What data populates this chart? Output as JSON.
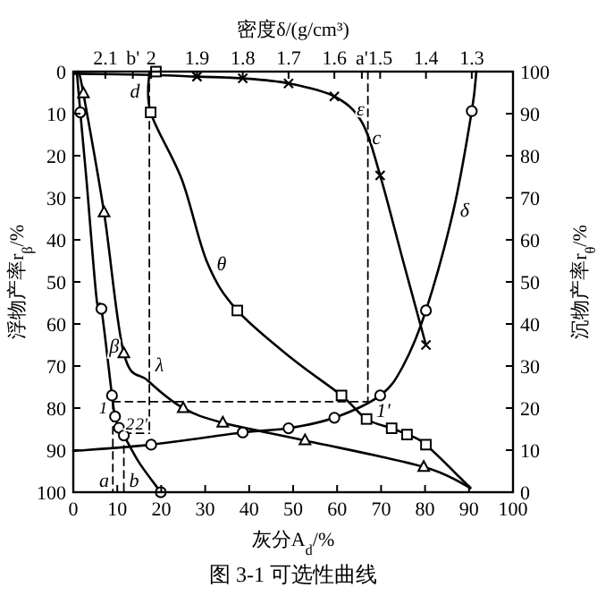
{
  "chart_data": {
    "type": "line",
    "title": "图 3-1  可选性曲线",
    "xlabel": "灰分A$_{d}$/%",
    "ylabel": "浮物产率r$_{β}$/%",
    "y2label": "沉物产率r$_{θ}$/%",
    "x2label": "密度δ/(g/cm³)",
    "xlim": [
      0,
      100
    ],
    "xticks": [
      0,
      10,
      20,
      30,
      40,
      50,
      60,
      70,
      80,
      90,
      100
    ],
    "ylim": [
      100,
      0
    ],
    "yticks": [
      0,
      10,
      20,
      30,
      40,
      50,
      60,
      70,
      80,
      90,
      100
    ],
    "y2lim": [
      0,
      100
    ],
    "y2ticks": [
      0,
      10,
      20,
      30,
      40,
      50,
      60,
      70,
      80,
      90,
      100
    ],
    "x2lim": [
      2.17,
      1.21
    ],
    "x2ticks": [
      2.1,
      {
        "value": 2.04,
        "label": "b'"
      },
      2.0,
      1.9,
      1.8,
      1.7,
      1.6,
      {
        "value": 1.54,
        "label": "a'"
      },
      1.5,
      1.4,
      1.3
    ],
    "series": [
      {
        "type": "line",
        "color": "#000000",
        "x": [
          1.2,
          2.3,
          7,
          11.5,
          17,
          25,
          34,
          52.7,
          79.7,
          90.3
        ],
        "values": [
          0,
          5.2,
          33.5,
          67,
          73.5,
          80,
          83.5,
          87.7,
          94,
          99
        ]
      },
      {
        "type": "scatter",
        "marker": "triangle",
        "color": "#000000",
        "x": [
          2.3,
          7,
          11.5,
          25,
          34,
          52.7,
          79.7
        ],
        "values": [
          5.2,
          33.5,
          67,
          80,
          83.5,
          87.7,
          94
        ]
      },
      {
        "type": "line",
        "color": "#000000",
        "x": [
          0.8,
          1.6,
          3,
          5.3,
          6.4,
          8.8,
          9.5,
          10.4,
          11.5,
          15,
          19.9
        ],
        "values": [
          0,
          9.7,
          25.7,
          54,
          56.4,
          77,
          82,
          84.7,
          86.5,
          93,
          100
        ]
      },
      {
        "type": "scatter",
        "marker": "circle",
        "color": "#000000",
        "x": [
          1.6,
          6.4,
          8.8,
          9.5,
          10.4,
          11.5,
          19.9
        ],
        "values": [
          9.7,
          56.4,
          77,
          82,
          84.7,
          86.5,
          100
        ]
      },
      {
        "type": "line",
        "axis": "y2",
        "color": "#000000",
        "x": [
          17.3,
          17.6,
          24.7,
          30.5,
          37.3,
          49.7,
          61,
          66.7,
          72.4,
          75.9,
          80.2,
          90.3
        ],
        "values": [
          100,
          90.3,
          74.3,
          54.5,
          43.2,
          31.8,
          23,
          17.4,
          15.2,
          13.7,
          11.3,
          1
        ]
      },
      {
        "type": "scatter",
        "axis": "y2",
        "marker": "square",
        "color": "#000000",
        "x": [
          18.8,
          17.6,
          37.3,
          61,
          66.7,
          72.4,
          75.9,
          80.2
        ],
        "values": [
          100,
          90.3,
          43.2,
          23,
          17.4,
          15.2,
          13.7,
          11.3
        ]
      },
      {
        "type": "line",
        "axis": "x2",
        "color": "#000000",
        "x": [
          2.17,
          2.0,
          1.8,
          1.7,
          1.6,
          1.5,
          1.45,
          1.4,
          1.34,
          1.3,
          1.29
        ],
        "values": [
          90.2,
          88.7,
          85.8,
          84.8,
          82.3,
          77,
          70,
          56.8,
          33,
          9.4,
          0
        ]
      },
      {
        "type": "scatter",
        "axis": "x2",
        "marker": "circle",
        "color": "#000000",
        "x": [
          2.0,
          1.8,
          1.7,
          1.6,
          1.5,
          1.4,
          1.3
        ],
        "values": [
          88.7,
          85.8,
          84.8,
          82.3,
          77,
          56.8,
          9.4
        ]
      },
      {
        "type": "line",
        "axis": "x2",
        "color": "#000000",
        "x": [
          2.17,
          2.0,
          1.9,
          1.8,
          1.7,
          1.6,
          1.54,
          1.5,
          1.45,
          1.4
        ],
        "values": [
          0.5,
          0.8,
          1.2,
          1.6,
          2.8,
          5.9,
          12,
          24.7,
          45,
          65
        ]
      },
      {
        "type": "scatter",
        "axis": "x2",
        "marker": "cross",
        "color": "#000000",
        "x": [
          1.9,
          1.8,
          1.7,
          1.6,
          1.5,
          1.4
        ],
        "values": [
          1.2,
          1.6,
          2.8,
          5.9,
          24.7,
          65
        ]
      },
      {
        "type": "line",
        "line_style": "dashed",
        "color": "#000000",
        "x": [
          17.3,
          17.3
        ],
        "values": [
          0,
          86
        ]
      },
      {
        "type": "line",
        "line_style": "dashed",
        "color": "#000000",
        "x": [
          11.5,
          17.3
        ],
        "values": [
          86,
          86
        ]
      },
      {
        "type": "line",
        "line_style": "dashed",
        "color": "#000000",
        "x": [
          11.5,
          11.5
        ],
        "values": [
          86,
          100
        ]
      },
      {
        "type": "line",
        "line_style": "dashed",
        "color": "#000000",
        "x": [
          9,
          67
        ],
        "values": [
          78.5,
          78.5
        ]
      },
      {
        "type": "line",
        "line_style": "dashed",
        "color": "#000000",
        "x": [
          9,
          9
        ],
        "values": [
          78.5,
          100
        ]
      },
      {
        "type": "line",
        "line_style": "dashed",
        "color": "#000000",
        "x": [
          67,
          67
        ],
        "values": [
          0,
          78.5
        ]
      }
    ],
    "annotations": [
      "d",
      {
        "text": "ε",
        "x": 65.3,
        "y": 8.7
      },
      {
        "text": "c",
        "x": 69,
        "y": 15.5
      },
      "δ",
      "θ",
      {
        "text": "β",
        "x": 9.3,
        "y": 65
      },
      "λ",
      {
        "text": "1",
        "x": 6.8,
        "y": 79.5
      },
      {
        "text": "2",
        "x": 12.9,
        "y": 83.5
      },
      {
        "text": "2'",
        "x": 15.5,
        "y": 83.5
      },
      "1'",
      {
        "text": "a",
        "x": 7,
        "y": 97
      },
      "b"
    ]
  }
}
